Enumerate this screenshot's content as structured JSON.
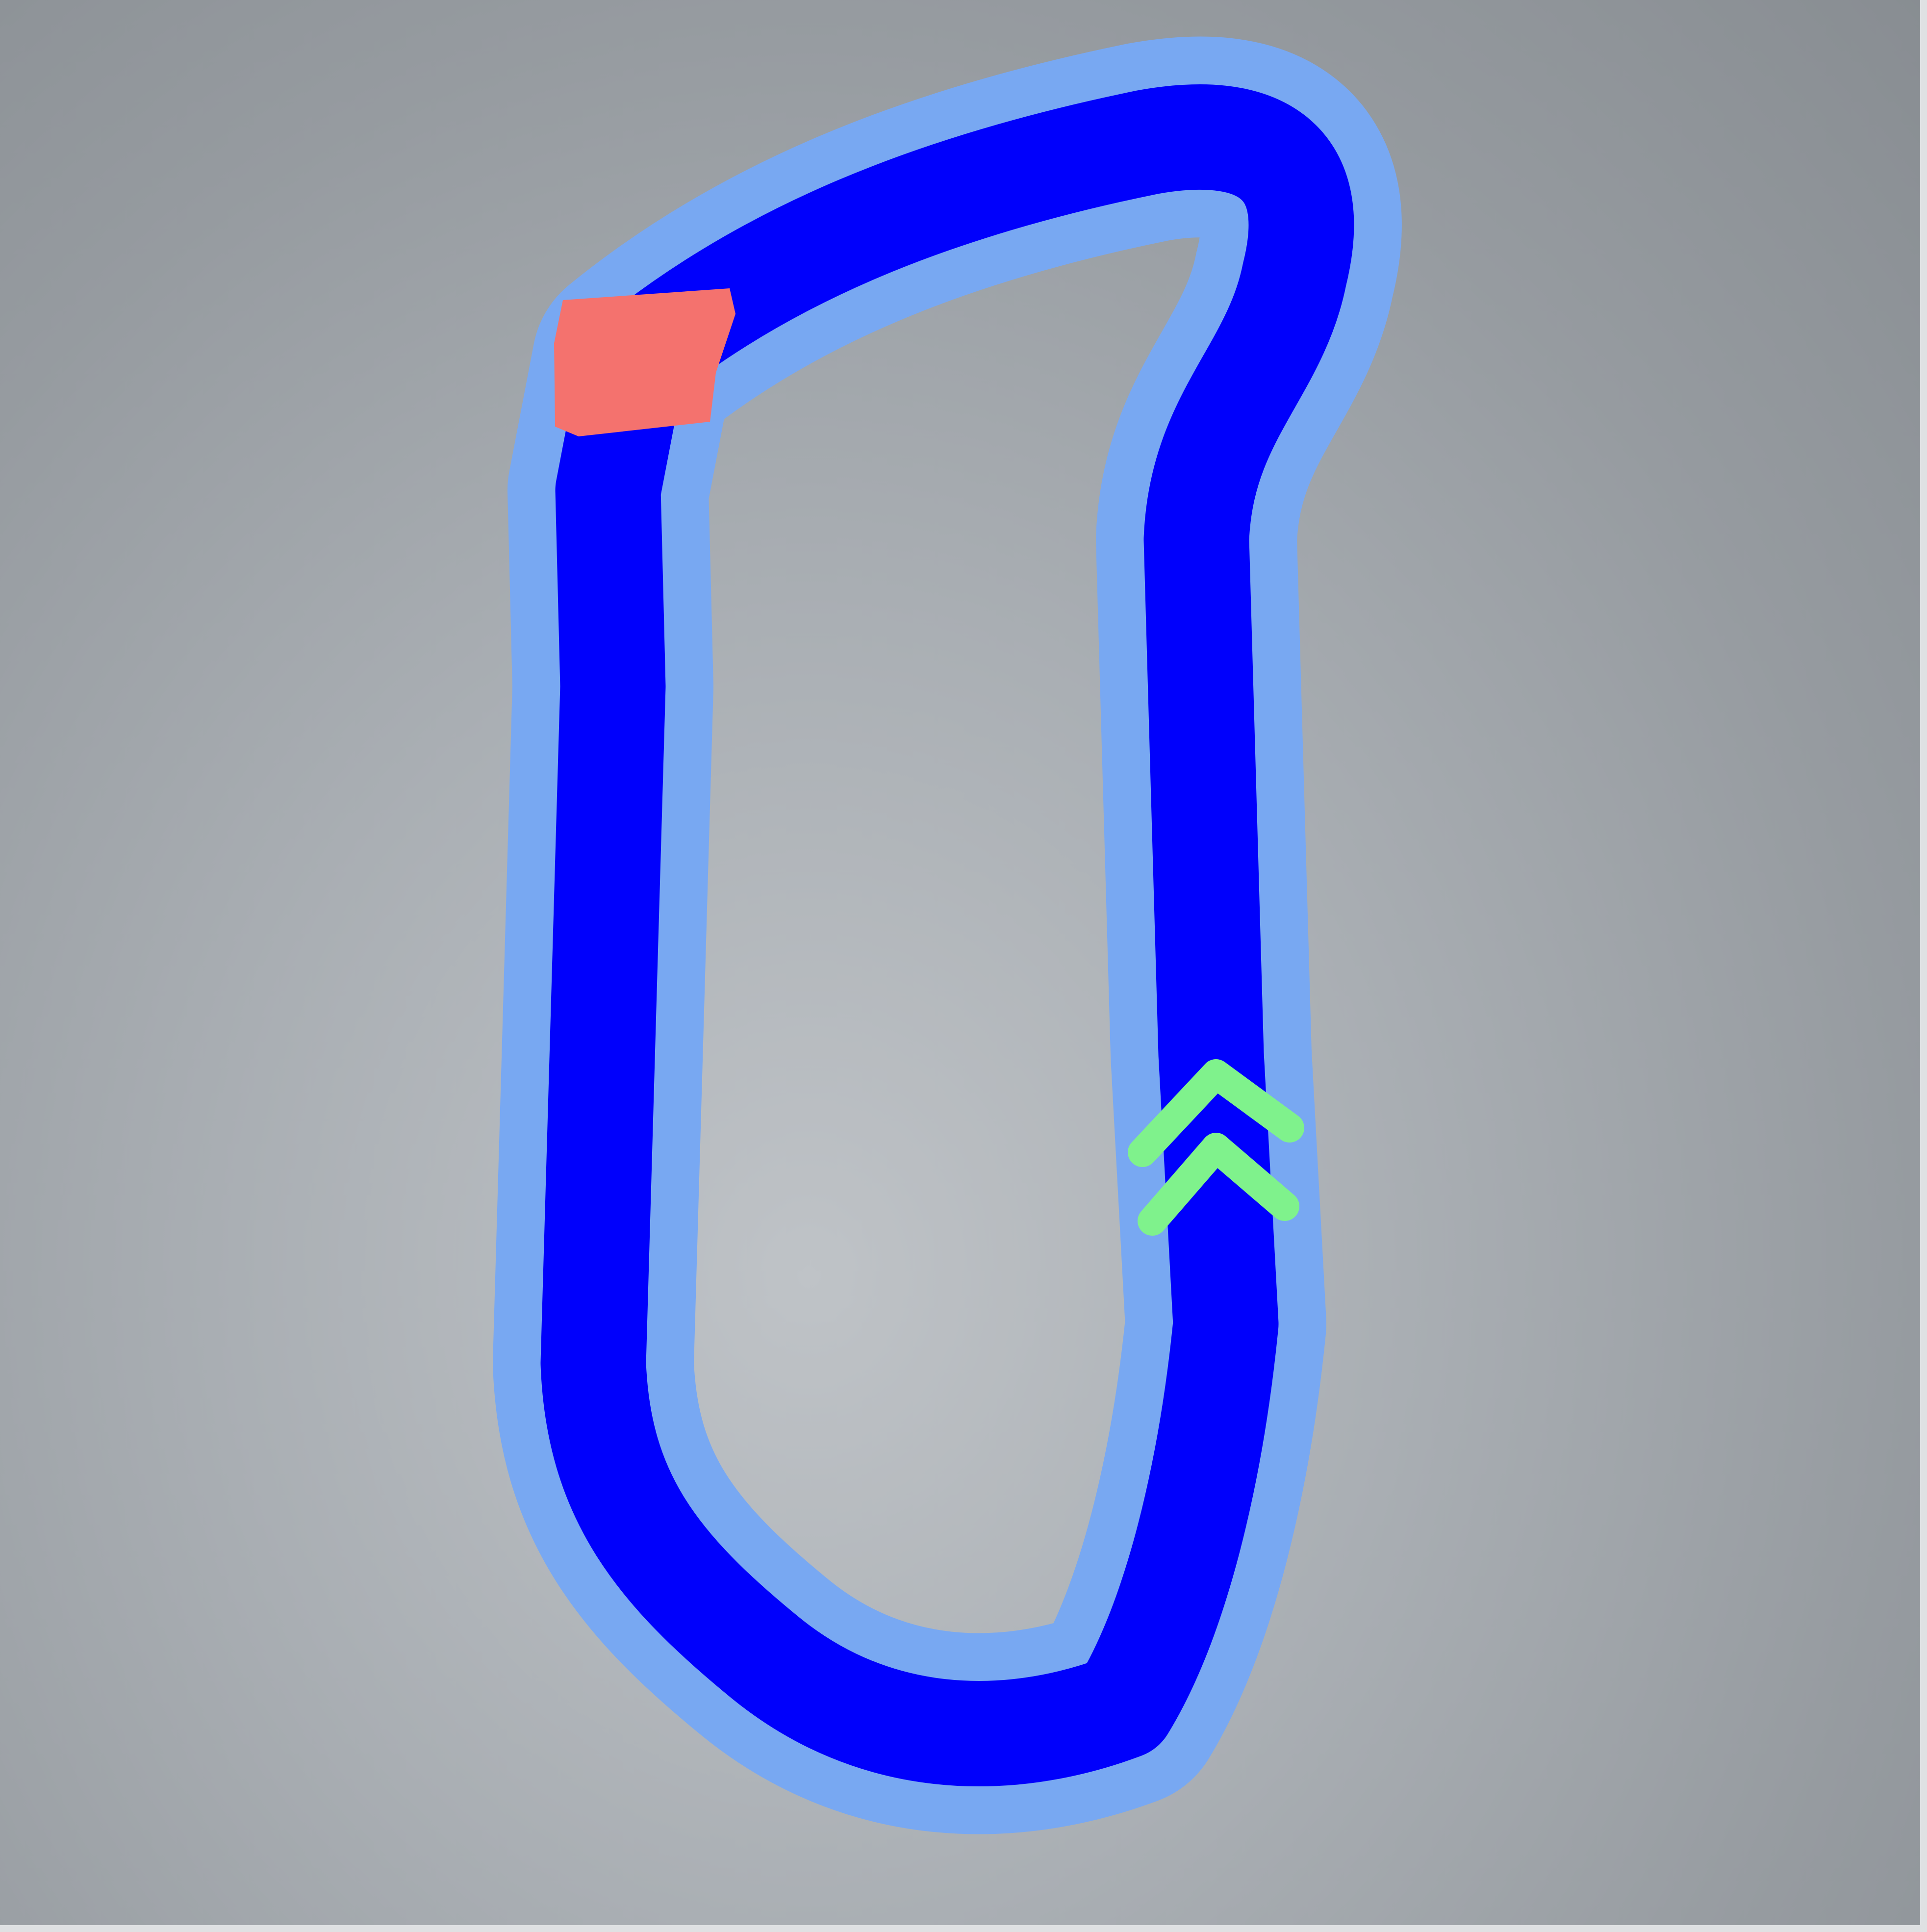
{
  "track": {
    "road_color": "#0000fc",
    "edge_color": "#78a8f2",
    "start_marker_color": "#f4726e",
    "direction_arrow_color": "#7ff28c",
    "direction": "up"
  },
  "background": {
    "color_center": "#bfc3c7",
    "color_edge": "#888d92"
  }
}
